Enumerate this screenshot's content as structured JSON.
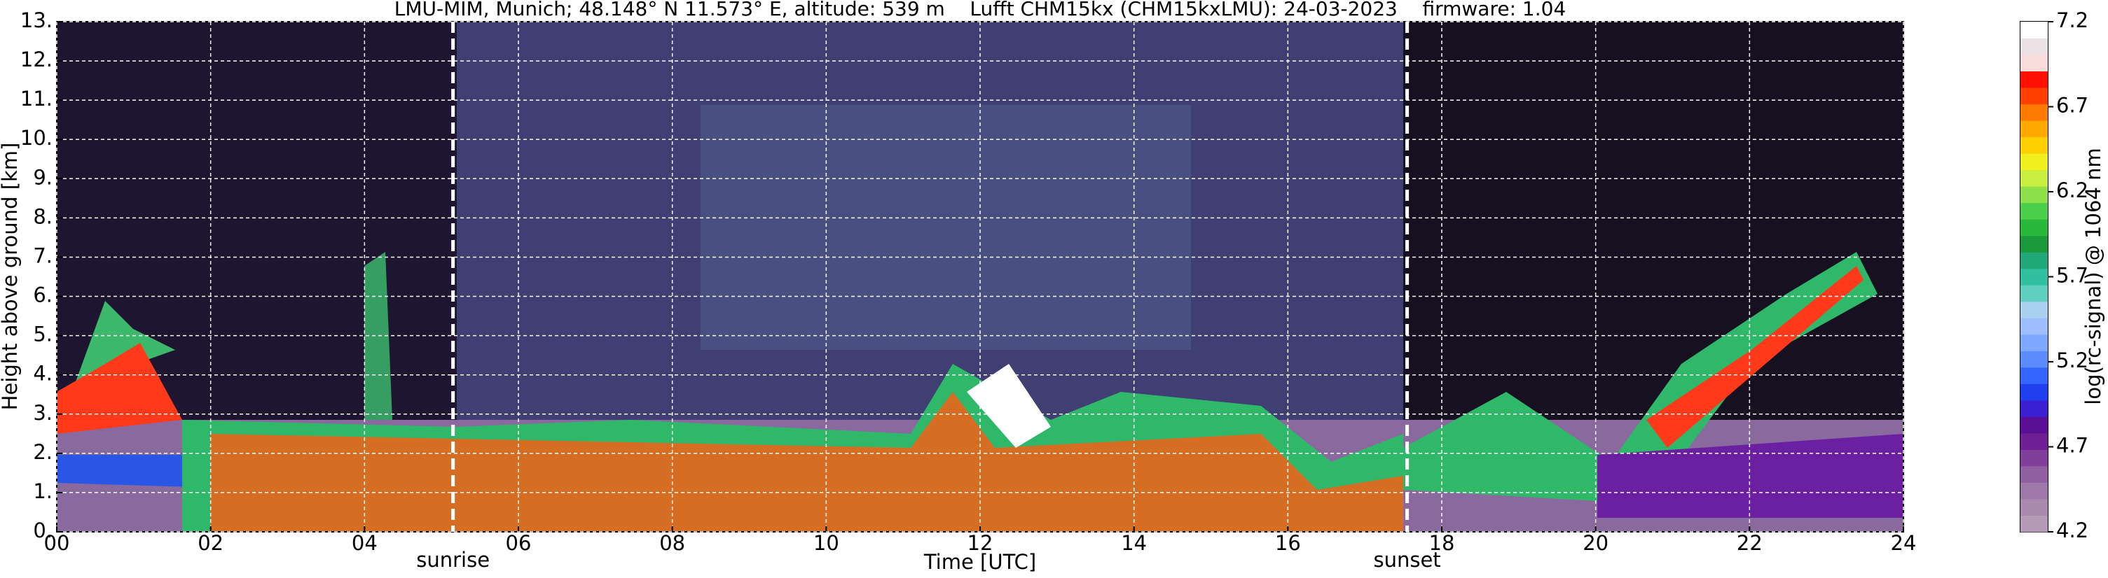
{
  "chart_data": {
    "type": "heatmap",
    "title": "LMU-MIM, Munich; 48.148° N 11.573° E, altitude: 539 m    Lufft CHM15kx (CHM15kxLMU): 24-03-2023    firmware: 1.04",
    "xlabel": "Time [UTC]",
    "ylabel": "Height above ground [km]",
    "xlim": [
      0,
      24
    ],
    "xticks": [
      {
        "value": 0,
        "label": "00"
      },
      {
        "value": 2,
        "label": "02"
      },
      {
        "value": 4,
        "label": "04"
      },
      {
        "value": 6,
        "label": "06"
      },
      {
        "value": 8,
        "label": "08"
      },
      {
        "value": 10,
        "label": "10"
      },
      {
        "value": 12,
        "label": "12"
      },
      {
        "value": 14,
        "label": "14"
      },
      {
        "value": 16,
        "label": "16"
      },
      {
        "value": 18,
        "label": "18"
      },
      {
        "value": 20,
        "label": "20"
      },
      {
        "value": 22,
        "label": "22"
      },
      24
    ],
    "ylim": [
      0,
      13
    ],
    "yticks": [
      {
        "value": 0,
        "label": "0."
      },
      {
        "value": 1,
        "label": "1."
      },
      {
        "value": 2,
        "label": "2."
      },
      {
        "value": 3,
        "label": "3."
      },
      {
        "value": 4,
        "label": "4."
      },
      {
        "value": 5,
        "label": "5."
      },
      {
        "value": 6,
        "label": "6."
      },
      {
        "value": 7,
        "label": "7."
      },
      {
        "value": 8,
        "label": "8."
      },
      {
        "value": 9,
        "label": "9."
      },
      {
        "value": 10,
        "label": "10."
      },
      {
        "value": 11,
        "label": "11."
      },
      {
        "value": 12,
        "label": "12."
      },
      {
        "value": 13,
        "label": "13."
      }
    ],
    "grid": true,
    "annotations": [
      {
        "text": "sunrise",
        "x": 5.15
      },
      {
        "text": "sunset",
        "x": 17.55
      }
    ],
    "colorbar": {
      "label": "log(rc-signal) @ 1064 nm",
      "lim": [
        4.2,
        7.2
      ],
      "ticks": [
        4.2,
        4.7,
        5.2,
        5.7,
        6.2,
        6.7,
        7.2
      ],
      "colors": [
        "#b49ab4",
        "#a98aae",
        "#9d78a8",
        "#8f5fa2",
        "#7f3f9a",
        "#6e1f94",
        "#5a0f96",
        "#3b1fd2",
        "#2140f0",
        "#3466ff",
        "#5a8cff",
        "#7fa8ff",
        "#9dbdff",
        "#a9d0ef",
        "#5fd0c0",
        "#30c0a0",
        "#20a878",
        "#1a9a3a",
        "#28b83a",
        "#4ad04a",
        "#8ee04a",
        "#c8ee40",
        "#f0f020",
        "#ffd000",
        "#ffa800",
        "#ff7a00",
        "#ff4000",
        "#ff1000",
        "#f8dcdc",
        "#ece2e6",
        "#ffffff"
      ]
    }
  }
}
